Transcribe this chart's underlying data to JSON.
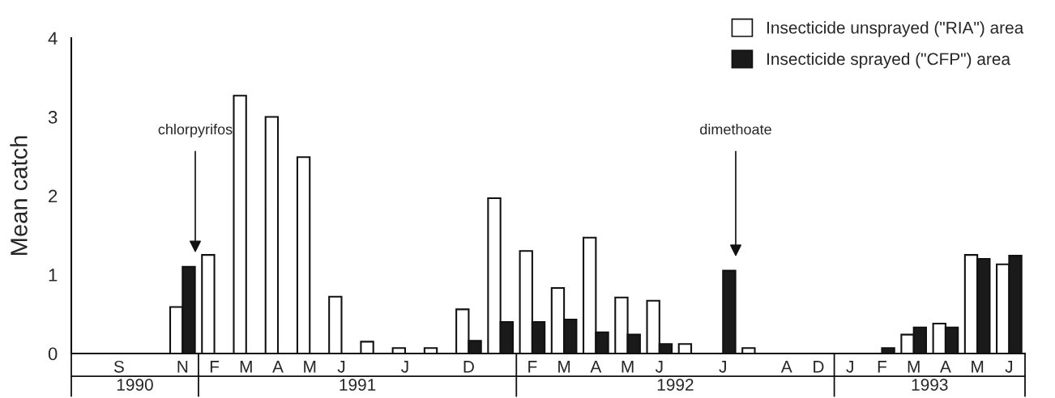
{
  "chart_data": [
    {
      "type": "bar",
      "xlabel": "1990",
      "ylabel": "Mean catch",
      "categories": [
        null,
        "S",
        null,
        "N"
      ],
      "series": [
        {
          "color": "#ffffff",
          "values": [
            null,
            null,
            null,
            0.59
          ]
        },
        {
          "color": "#1a1a1a",
          "values": [
            null,
            null,
            null,
            1.1
          ]
        }
      ],
      "ylim": [
        0,
        4
      ],
      "yticks": [
        0,
        1,
        2,
        3,
        4
      ],
      "annotations": [
        "chlorpyrifos"
      ]
    },
    {
      "type": "bar",
      "xlabel": "1991",
      "categories": [
        "F",
        "M",
        "A",
        "M",
        "J",
        null,
        "J",
        null,
        "D",
        null
      ],
      "series": [
        {
          "color": "#ffffff",
          "values": [
            1.25,
            3.27,
            3.0,
            2.49,
            0.72,
            0.15,
            0.07,
            0.07,
            0.56,
            1.97
          ]
        },
        {
          "color": "#1a1a1a",
          "values": [
            null,
            null,
            null,
            null,
            null,
            null,
            null,
            null,
            0.16,
            0.4
          ]
        }
      ],
      "ylim": [
        0,
        4
      ],
      "tick_labels": "x"
    },
    {
      "type": "bar",
      "xlabel": "1992",
      "categories": [
        "F",
        "M",
        "A",
        "M",
        "J",
        null,
        "J",
        null,
        "A",
        "D"
      ],
      "series": [
        {
          "name": "Insecticide unsprayed (\"RIA\") area",
          "color": "#ffffff",
          "values": [
            1.3,
            0.83,
            1.47,
            0.71,
            0.67,
            0.12,
            null,
            0.07,
            null,
            null
          ]
        },
        {
          "name": "Insecticide sprayed (\"CFP\") area",
          "color": "#1a1a1a",
          "values": [
            0.4,
            0.43,
            0.27,
            0.24,
            0.12,
            null,
            1.05,
            null,
            null,
            null
          ]
        }
      ],
      "ylim": [
        0,
        4
      ],
      "tick_labels": "x",
      "legend": "top right",
      "annotations": [
        "dimethoate"
      ]
    },
    {
      "type": "bar",
      "xlabel": "1993",
      "categories": [
        "J",
        "F",
        "M",
        "A",
        "M",
        "J"
      ],
      "series": [
        {
          "color": "#ffffff",
          "values": [
            null,
            null,
            0.24,
            0.38,
            1.25,
            1.13
          ]
        },
        {
          "color": "#1a1a1a",
          "values": [
            null,
            0.07,
            0.33,
            0.33,
            1.2,
            1.24
          ]
        }
      ],
      "ylim": [
        0,
        4
      ],
      "tick_labels": "x"
    }
  ]
}
